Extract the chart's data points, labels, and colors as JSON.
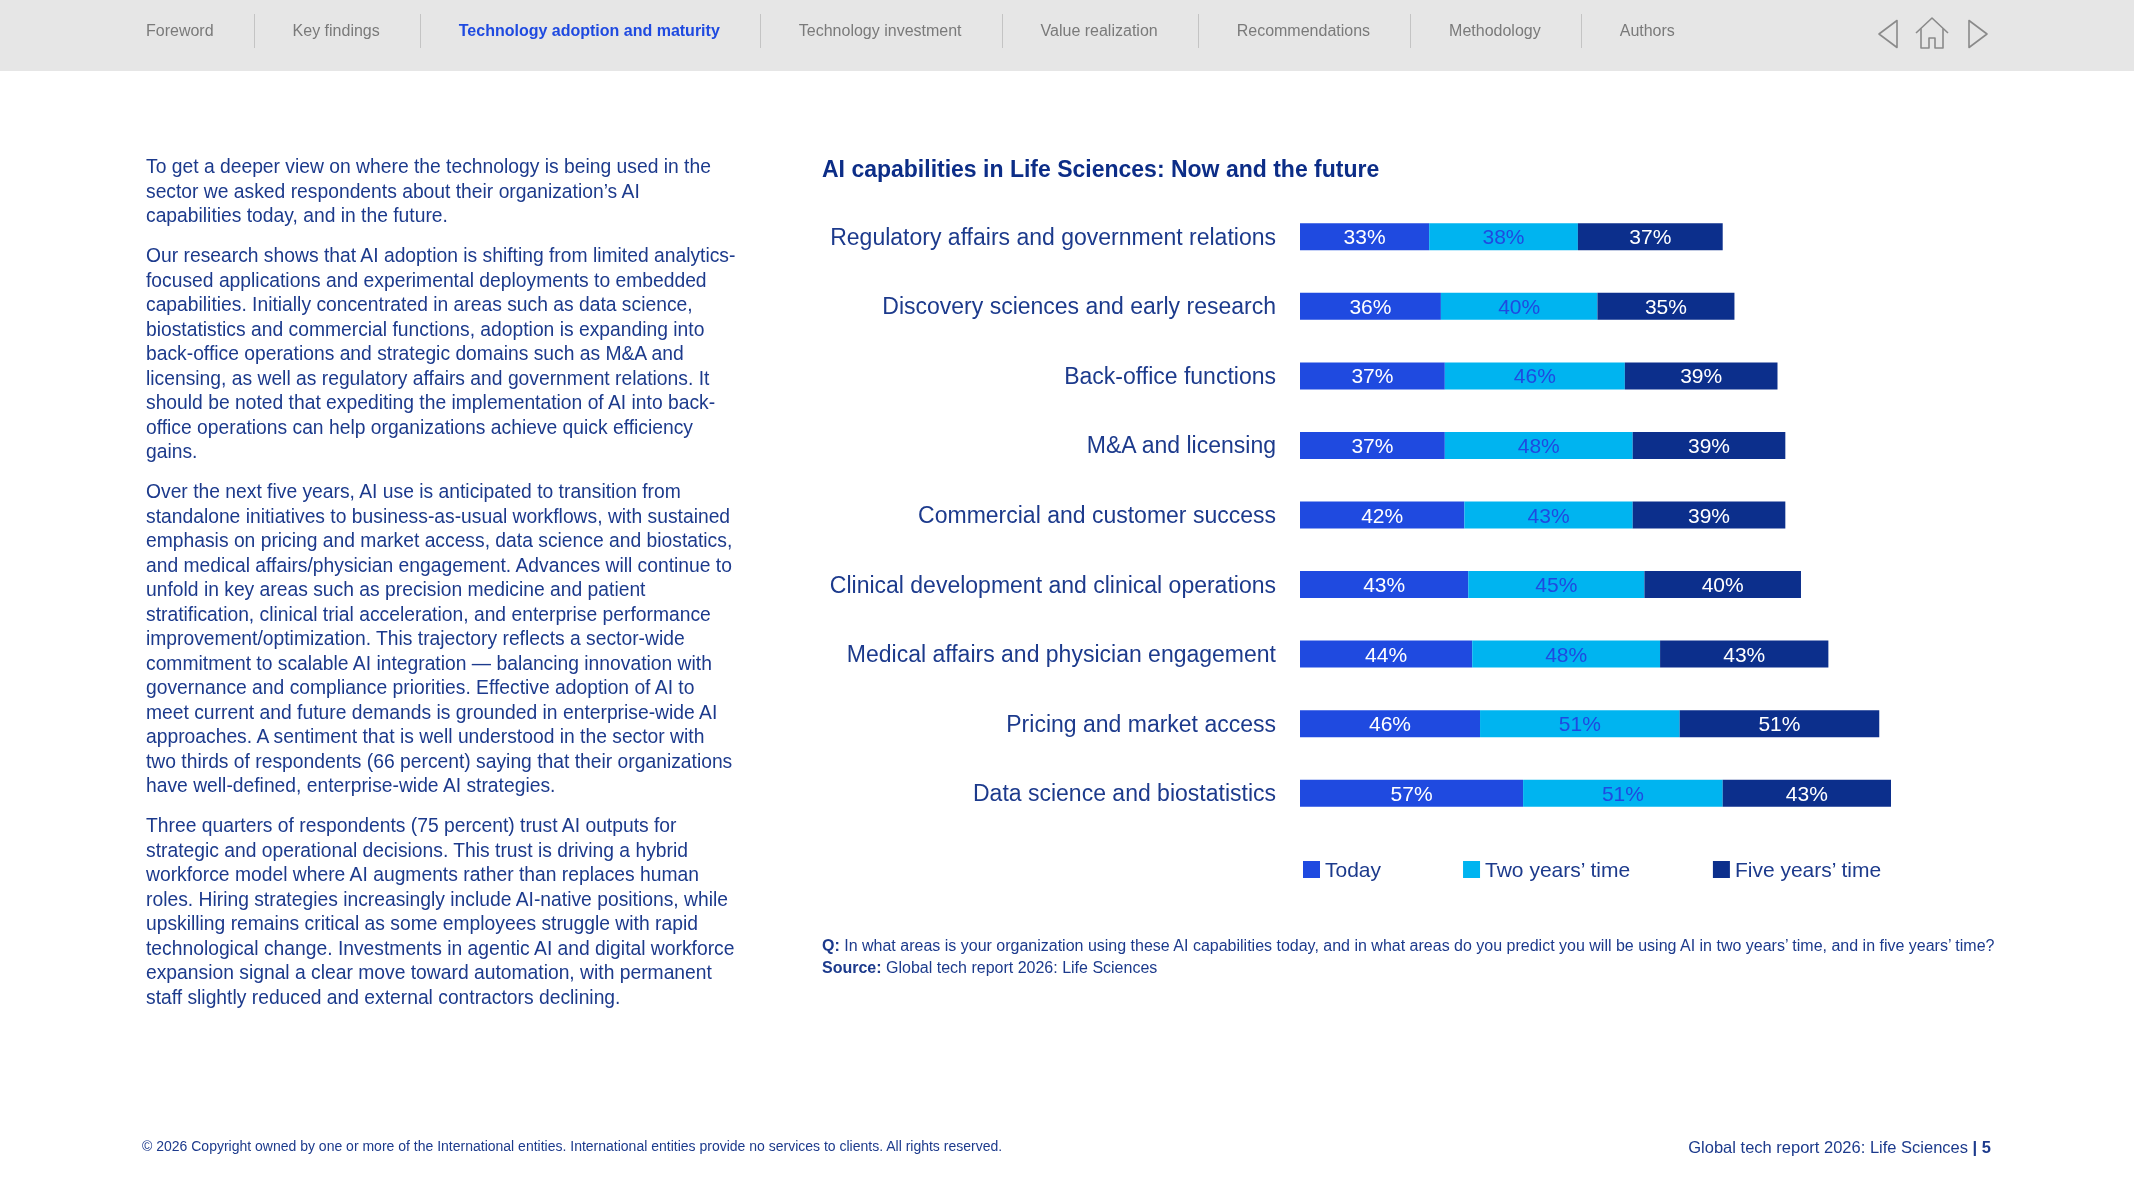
{
  "chart_data": {
    "type": "bar",
    "orientation": "horizontal",
    "stacked": true,
    "title": "AI capabilities in Life Sciences: Now and the future",
    "categories": [
      "Regulatory affairs and government relations",
      "Discovery sciences and early research",
      "Back-office functions",
      "M&A and licensing",
      "Commercial and customer success",
      "Clinical development and clinical operations",
      "Medical affairs and physician engagement",
      "Pricing and market access",
      "Data science and biostatistics"
    ],
    "series": [
      {
        "name": "Today",
        "color": "#1f4ae0",
        "values": [
          33,
          36,
          37,
          37,
          42,
          43,
          44,
          46,
          57
        ],
        "value_labels": [
          "33%",
          "36%",
          "37%",
          "37%",
          "42%",
          "43%",
          "44%",
          "46%",
          "57%"
        ]
      },
      {
        "name": "Two years’ time",
        "color": "#00b4f0",
        "values": [
          38,
          40,
          46,
          48,
          43,
          45,
          48,
          51,
          51
        ],
        "value_labels": [
          "38%",
          "40%",
          "46%",
          "48%",
          "43%",
          "45%",
          "48%",
          "51%",
          "51%"
        ]
      },
      {
        "name": "Five years’ time",
        "color": "#0c2f8c",
        "values": [
          37,
          35,
          39,
          39,
          39,
          40,
          43,
          51,
          43
        ],
        "value_labels": [
          "37%",
          "35%",
          "39%",
          "39%",
          "39%",
          "40%",
          "43%",
          "51%",
          "43%"
        ]
      }
    ],
    "legend": "bottom",
    "annotations": [
      "Foreword",
      "Key findings",
      "Technology adoption and maturity",
      "Technology investment",
      "Value realization",
      "Recommendations",
      "Methodology",
      "Authors",
      "To get a deeper view on where the technology is being used in the sector we asked respondents about their organization’s AI capabilities today, and in the future.",
      "Our research shows that AI adoption is shifting from limited analytics-focused applications and experimental deployments to embedded capabilities. Initially concentrated in areas such as data science, biostatistics and commercial functions, adoption is expanding into back-office operations and strategic domains such as M&A and licensing, as well as regulatory affairs and government relations. It should be noted that expediting the implementation of AI into back-office operations can help organizations achieve quick efficiency gains.",
      "Over the next five years, AI use is anticipated to transition from standalone initiatives to business-as-usual workflows, with sustained emphasis on pricing and market access, data science and biostatics, and medical affairs/physician engagement. Advances will continue to unfold in key areas such as precision medicine and patient stratification, clinical trial acceleration, and enterprise performance improvement/optimization. This trajectory reflects a sector-wide commitment to scalable AI integration — balancing innovation with governance and compliance priorities. Effective adoption of AI to meet current and future demands is grounded in enterprise-wide AI approaches. A sentiment that is well understood in the sector with two thirds of respondents (66 percent) saying that their organizations have well-defined, enterprise-wide AI strategies.",
      "Three quarters of respondents (75 percent) trust AI outputs for strategic and operational decisions. This trust is driving a hybrid workforce model where AI augments rather than replaces human roles. Hiring strategies increasingly include AI-native positions, while upskilling remains critical as some employees struggle with rapid technological change. Investments in agentic AI and digital workforce expansion signal a clear move toward automation, with permanent staff slightly reduced and external contractors declining.",
      "Q: In what areas is your organization using these AI capabilities today, and in what areas do you predict you will be using AI in two years’ time, and in five years’ time?",
      "Source: Global tech report 2026: Life Sciences",
      "© 2026 Copyright owned by one or more of the International entities. International entities provide no services to clients. All rights reserved.",
      "Global tech report 2026: Life Sciences | 5"
    ]
  }
}
